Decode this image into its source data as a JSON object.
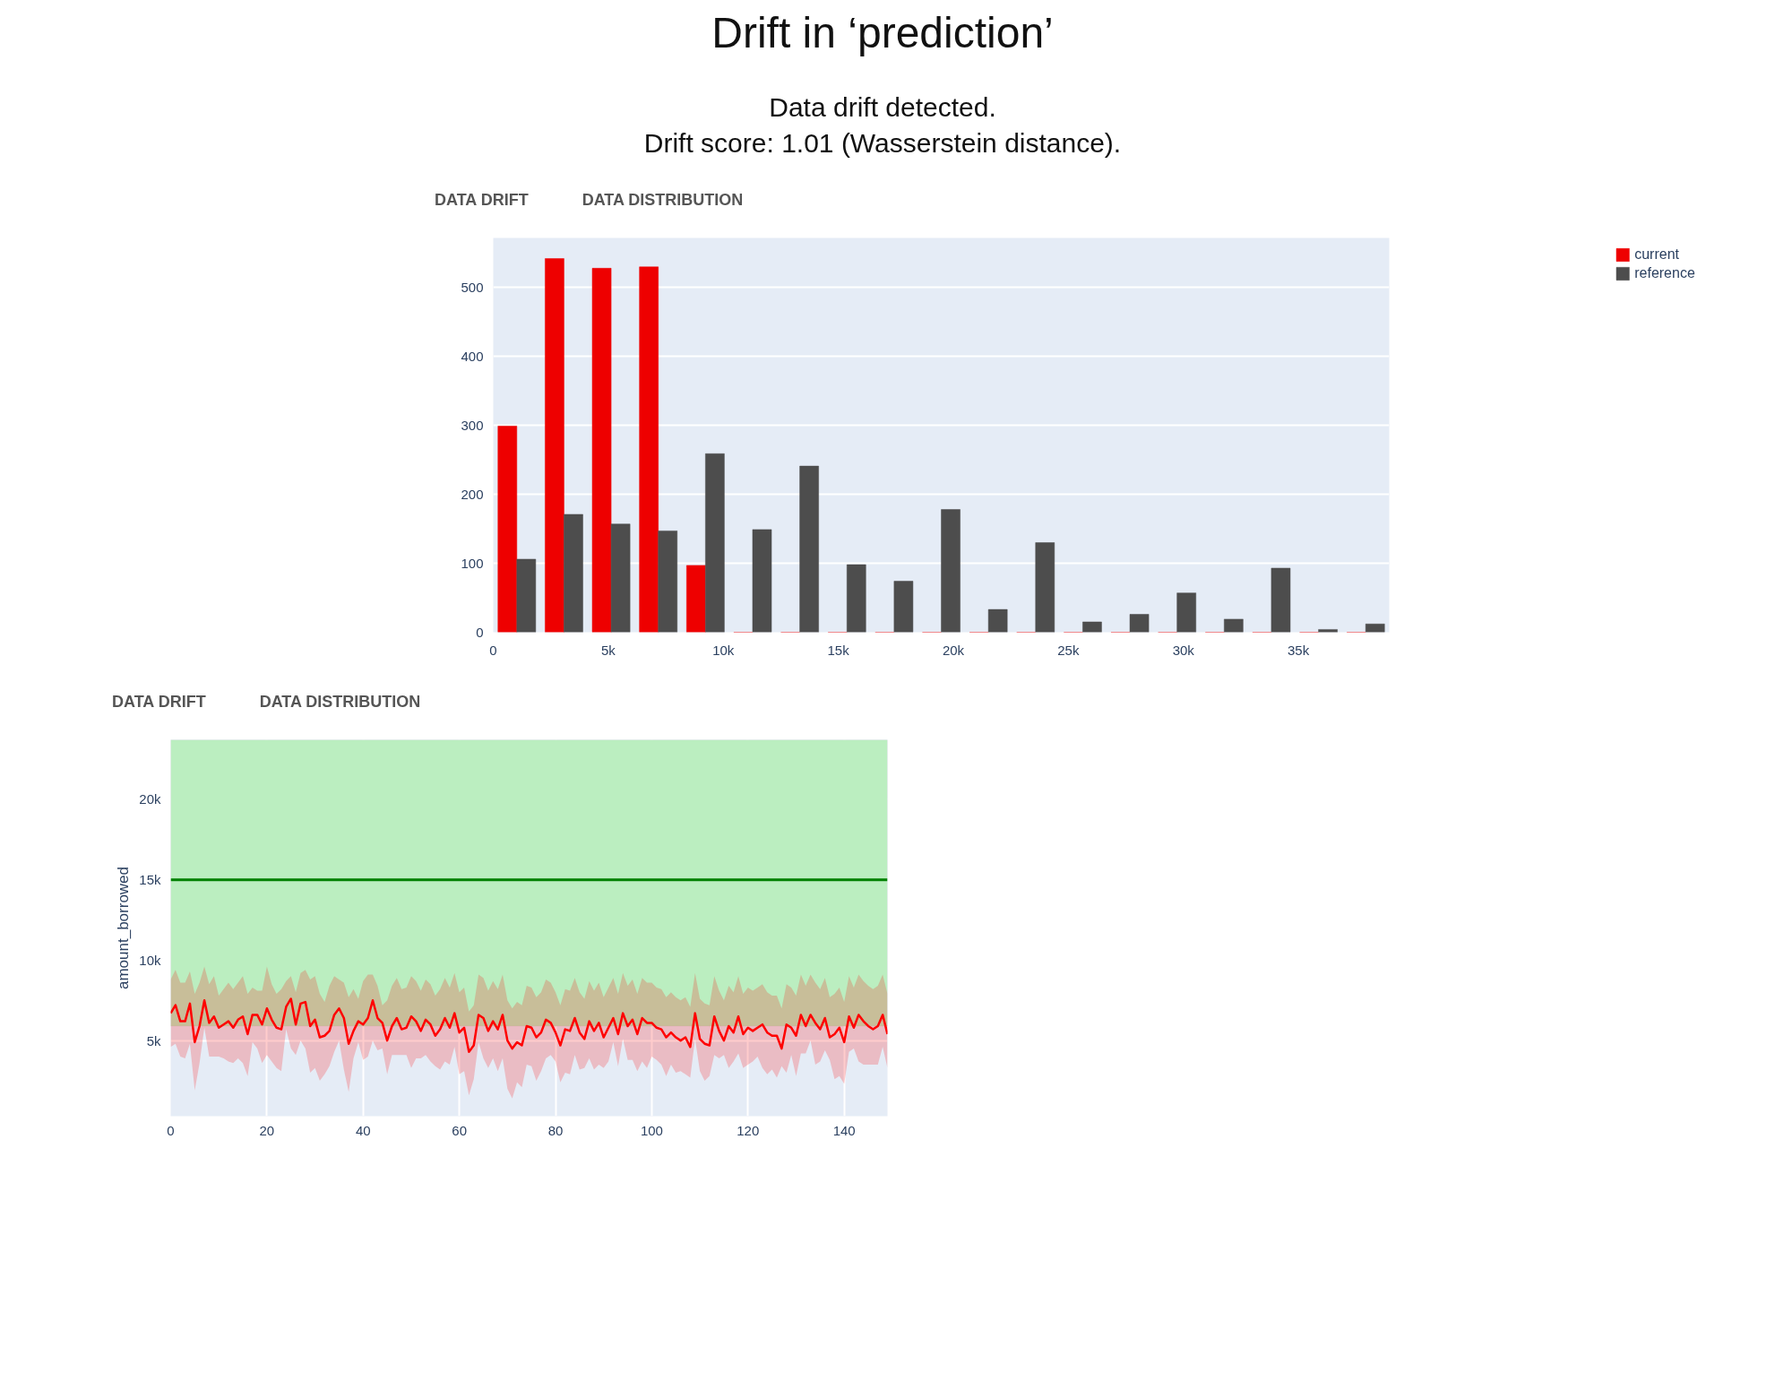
{
  "chart_data": [
    {
      "type": "histogram",
      "title": "Drift in ‘prediction’",
      "subtitle": "Data drift detected.\nDrift score: 1.01 (Wasserstein distance).",
      "annotations": [
        "DATA DRIFT",
        "DATA DISTRIBUTION"
      ],
      "bins": [
        0,
        2050,
        4100,
        6150,
        8200,
        10250,
        12300,
        14350,
        16400,
        18450,
        20500,
        22550,
        24600,
        26650,
        28700,
        30750,
        32800,
        34850,
        36900,
        38950
      ],
      "series": [
        {
          "name": "current",
          "color": "#ee0000",
          "values": [
            299,
            542,
            528,
            530,
            97,
            0,
            0,
            0,
            0,
            0,
            0,
            0,
            0,
            0,
            0,
            0,
            0,
            0,
            0
          ]
        },
        {
          "name": "reference",
          "color": "#4d4d4d",
          "values": [
            106,
            171,
            157,
            147,
            259,
            149,
            241,
            98,
            74,
            178,
            33,
            130,
            15,
            26,
            57,
            19,
            93,
            4,
            12
          ]
        }
      ],
      "xlim": [
        0,
        38950
      ],
      "xticks": [
        0,
        {
          "value": 5000,
          "label": "5k"
        },
        {
          "value": 10000,
          "label": "10k"
        },
        {
          "value": 15000,
          "label": "15k"
        },
        {
          "value": 20000,
          "label": "20k"
        },
        {
          "value": 25000,
          "label": "25k"
        },
        {
          "value": 30000,
          "label": "30k"
        },
        {
          "value": 35000,
          "label": "35k"
        }
      ],
      "ylim": [
        0,
        572
      ],
      "yticks": [
        0,
        100,
        200,
        300,
        400,
        500
      ],
      "grid": "y",
      "legend": "top right"
    },
    {
      "type": "line",
      "annotations": [
        "DATA DRIFT",
        "DATA DISTRIBUTION"
      ],
      "ylabel": "amount_borrowed",
      "x": [
        0,
        1,
        2,
        3,
        4,
        5,
        6,
        7,
        8,
        9,
        10,
        11,
        12,
        13,
        14,
        15,
        16,
        17,
        18,
        19,
        20,
        21,
        22,
        23,
        24,
        25,
        26,
        27,
        28,
        29,
        30,
        31,
        32,
        33,
        34,
        35,
        36,
        37,
        38,
        39,
        40,
        41,
        42,
        43,
        44,
        45,
        46,
        47,
        48,
        49,
        50,
        51,
        52,
        53,
        54,
        55,
        56,
        57,
        58,
        59,
        60,
        61,
        62,
        63,
        64,
        65,
        66,
        67,
        68,
        69,
        70,
        71,
        72,
        73,
        74,
        75,
        76,
        77,
        78,
        79,
        80,
        81,
        82,
        83,
        84,
        85,
        86,
        87,
        88,
        89,
        90,
        91,
        92,
        93,
        94,
        95,
        96,
        97,
        98,
        99,
        100,
        101,
        102,
        103,
        104,
        105,
        106,
        107,
        108,
        109,
        110,
        111,
        112,
        113,
        114,
        115,
        116,
        117,
        118,
        119,
        120,
        121,
        122,
        123,
        124,
        125,
        126,
        127,
        128,
        129,
        130,
        131,
        132,
        133,
        134,
        135,
        136,
        137,
        138,
        139,
        140,
        141,
        142,
        143,
        144,
        145,
        146,
        147,
        148,
        149
      ],
      "series": [
        {
          "color": "#ff0000",
          "values": [
            6700,
            7200,
            6200,
            6200,
            7300,
            4900,
            5900,
            7500,
            6100,
            6500,
            5800,
            6000,
            6200,
            5800,
            6300,
            6500,
            5400,
            6600,
            6600,
            6000,
            7000,
            6300,
            5800,
            5700,
            7100,
            7600,
            6000,
            7300,
            7400,
            5900,
            6300,
            5200,
            5300,
            5600,
            6600,
            7000,
            6400,
            4800,
            5600,
            6200,
            6000,
            6400,
            7500,
            6400,
            6100,
            5000,
            5900,
            6400,
            5700,
            5800,
            6500,
            6200,
            5600,
            6300,
            6000,
            5300,
            5700,
            6400,
            5800,
            6700,
            5500,
            5800,
            4300,
            4700,
            6600,
            6400,
            5600,
            6200,
            5700,
            6600,
            5000,
            4500,
            4900,
            4700,
            5900,
            5800,
            5200,
            5500,
            6300,
            6100,
            5500,
            4700,
            5700,
            5600,
            6400,
            5500,
            5100,
            6200,
            5600,
            6100,
            5200,
            5800,
            6400,
            5400,
            6700,
            5900,
            6300,
            5400,
            6400,
            6100,
            6100,
            5800,
            5700,
            5200,
            5500,
            5200,
            5000,
            5200,
            4600,
            6700,
            5100,
            4800,
            4700,
            6500,
            5600,
            5000,
            5900,
            5500,
            6500,
            5400,
            5800,
            5600,
            5800,
            6000,
            5500,
            5300,
            5300,
            4500,
            6000,
            5800,
            5300,
            6600,
            5900,
            6600,
            6100,
            5700,
            6400,
            5200,
            5400,
            5800,
            4900,
            6500,
            5800,
            6600,
            6200,
            5900,
            5700,
            5900,
            6600,
            5400
          ],
          "lower": [
            4600,
            4800,
            4000,
            3900,
            4800,
            1900,
            3600,
            5800,
            4000,
            4000,
            4000,
            3900,
            3700,
            3600,
            3900,
            3600,
            2800,
            4900,
            4500,
            3600,
            4100,
            3700,
            3300,
            3100,
            5700,
            4500,
            4100,
            5000,
            4500,
            3000,
            3300,
            2500,
            2900,
            3400,
            4300,
            5000,
            3200,
            1800,
            3900,
            4900,
            3800,
            4000,
            5000,
            4400,
            4500,
            2900,
            4100,
            4100,
            4100,
            4100,
            3300,
            3900,
            3900,
            4100,
            3700,
            3400,
            3200,
            3700,
            3500,
            4600,
            2900,
            3100,
            1600,
            2600,
            4900,
            3900,
            3300,
            3900,
            3100,
            3900,
            2000,
            1400,
            2400,
            2100,
            3500,
            3400,
            2500,
            3100,
            3900,
            4100,
            3700,
            2400,
            3000,
            2900,
            4100,
            3200,
            3300,
            3900,
            3200,
            3500,
            3300,
            3700,
            4900,
            3400,
            5100,
            3800,
            3800,
            3100,
            3700,
            3300,
            4000,
            3800,
            3500,
            2800,
            3500,
            3000,
            3100,
            2900,
            2700,
            5100,
            3100,
            2500,
            2800,
            4100,
            3900,
            4100,
            3300,
            3700,
            4200,
            3300,
            3500,
            3700,
            4000,
            3300,
            2900,
            3200,
            2700,
            3400,
            3000,
            4100,
            2800,
            4200,
            4200,
            5000,
            3500,
            3700,
            4400,
            3800,
            2600,
            2800,
            2300,
            4300,
            4500,
            3700,
            3500,
            3500,
            3500,
            3500,
            4600,
            3300
          ],
          "upper": [
            8800,
            9400,
            8600,
            8600,
            9300,
            7900,
            8600,
            9600,
            8500,
            9000,
            7800,
            8200,
            8600,
            8200,
            8600,
            9000,
            7900,
            8300,
            8100,
            8100,
            9600,
            8500,
            7900,
            8200,
            8700,
            9000,
            8000,
            9200,
            9400,
            8800,
            9000,
            7900,
            7400,
            8400,
            9000,
            8800,
            8600,
            7700,
            8200,
            7600,
            8700,
            9100,
            9100,
            8400,
            7200,
            7500,
            8400,
            8900,
            8200,
            8300,
            9000,
            8700,
            8100,
            8800,
            8500,
            7800,
            8200,
            8900,
            8300,
            9200,
            8000,
            8300,
            6800,
            7200,
            9100,
            8900,
            8100,
            8700,
            8200,
            9100,
            7500,
            7000,
            7400,
            7200,
            8400,
            8300,
            7700,
            8000,
            8800,
            8600,
            8000,
            7200,
            8200,
            8100,
            8900,
            8000,
            7600,
            8700,
            8100,
            8600,
            7700,
            8300,
            8900,
            7900,
            9200,
            8400,
            8800,
            7900,
            8900,
            8600,
            8600,
            8300,
            8200,
            7700,
            8000,
            7700,
            7500,
            7700,
            7100,
            9200,
            7600,
            7300,
            7200,
            9000,
            8100,
            7500,
            8400,
            8000,
            9000,
            7900,
            8300,
            8100,
            8300,
            8500,
            8000,
            7800,
            7800,
            7000,
            8500,
            8300,
            7800,
            9100,
            8400,
            9100,
            8600,
            8200,
            8900,
            7700,
            7900,
            8300,
            7400,
            9000,
            8300,
            9100,
            8700,
            8400,
            8200,
            8400,
            9100,
            7900
          ]
        }
      ],
      "xlim": [
        0,
        149
      ],
      "xticks": [
        0,
        20,
        40,
        60,
        80,
        100,
        120,
        140
      ],
      "ylim": [
        300,
        23700
      ],
      "yticks": [
        {
          "value": 5000,
          "label": "5k"
        },
        {
          "value": 10000,
          "label": "10k"
        },
        {
          "value": 15000,
          "label": "15k"
        },
        {
          "value": 20000,
          "label": "20k"
        }
      ],
      "grid": true,
      "ref_lines": [
        {
          "axis": "y",
          "value": 15000,
          "color": "#008000"
        }
      ],
      "bands": [
        {
          "axis": "y",
          "from": 5900,
          "to": 23700,
          "color": "#bbeec0"
        }
      ]
    }
  ]
}
